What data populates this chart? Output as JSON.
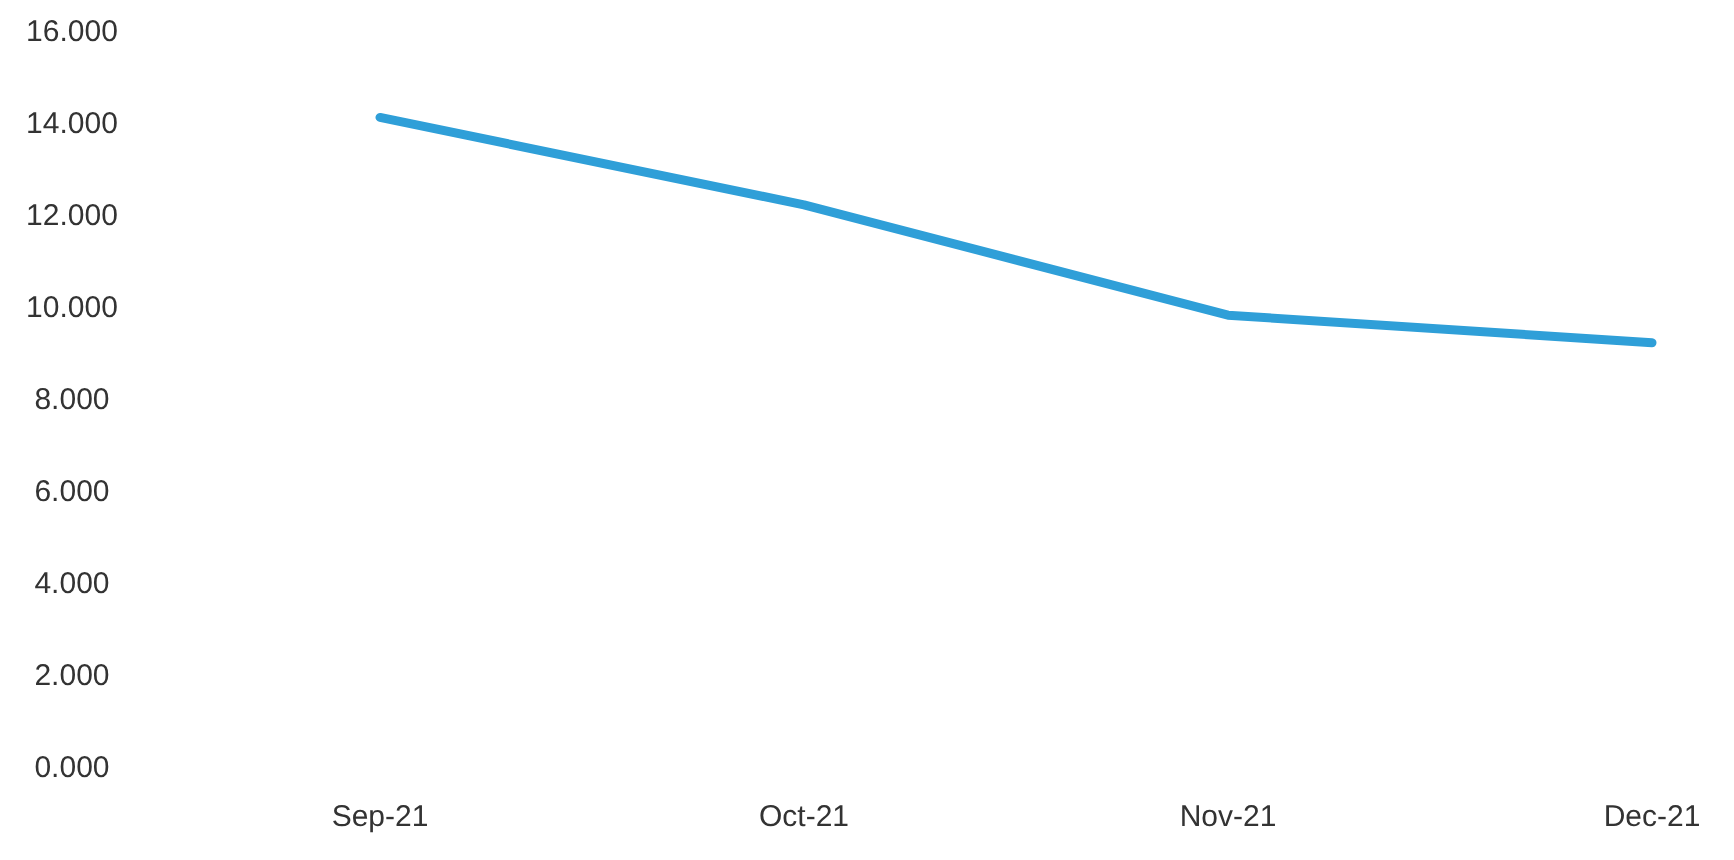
{
  "chart_data": {
    "type": "line",
    "categories": [
      "Sep-21",
      "Oct-21",
      "Nov-21",
      "Dec-21"
    ],
    "series": [
      {
        "color": "#2f9fd8",
        "values": [
          14.1,
          12.2,
          9.8,
          9.2
        ]
      }
    ],
    "ylim": [
      0,
      16
    ],
    "yticks": [
      {
        "value": 0,
        "label": "0.000"
      },
      {
        "value": 2,
        "label": "2.000"
      },
      {
        "value": 4,
        "label": "4.000"
      },
      {
        "value": 6,
        "label": "6.000"
      },
      {
        "value": 8,
        "label": "8.000"
      },
      {
        "value": 10,
        "label": "10.000"
      },
      {
        "value": 12,
        "label": "12.000"
      },
      {
        "value": 14,
        "label": "14.000"
      },
      {
        "value": 16,
        "label": "16.000"
      }
    ],
    "grid": false,
    "marker": "none",
    "line_style": "solid"
  }
}
